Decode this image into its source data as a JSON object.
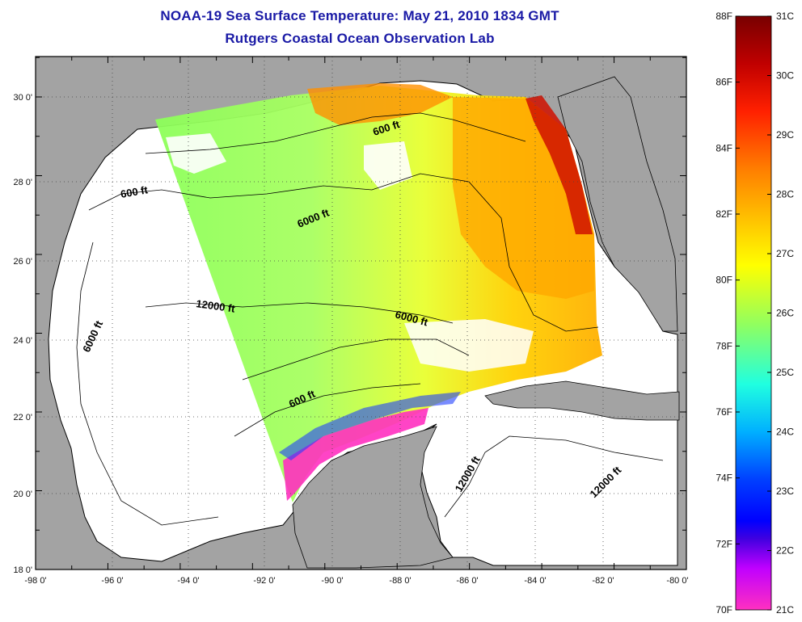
{
  "title_line1": "NOAA-19 Sea Surface Temperature:  May 21, 2010 1834 GMT",
  "title_line2": "Rutgers Coastal Ocean Observation Lab",
  "lon_ticks": [
    "-98 0'",
    "-96 0'",
    "-94 0'",
    "-92 0'",
    "-90 0'",
    "-88 0'",
    "-86 0'",
    "-84 0'",
    "-82 0'",
    "-80 0'"
  ],
  "lat_ticks": [
    "30 0'",
    "28 0'",
    "26 0'",
    "24 0'",
    "22 0'",
    "20 0'",
    "18 0'"
  ],
  "colorbar": {
    "fahrenheit": [
      "88F",
      "86F",
      "84F",
      "82F",
      "80F",
      "78F",
      "76F",
      "74F",
      "72F",
      "70F"
    ],
    "celsius": [
      "31C",
      "30C",
      "29C",
      "28C",
      "27C",
      "26C",
      "25C",
      "24C",
      "23C",
      "22C",
      "21C"
    ],
    "colors": [
      "#7a0000",
      "#c00000",
      "#ff2000",
      "#ff7000",
      "#ffb000",
      "#ffff00",
      "#a0ff40",
      "#40ffb0",
      "#00e0ff",
      "#0080ff",
      "#0010ff",
      "#8000ff",
      "#ff20c0"
    ]
  },
  "contour_labels": {
    "c600_north": "600 ft",
    "c600_west": "600 ft",
    "c6000_north": "6000 ft",
    "c12000_center": "12000 ft",
    "c6000_center": "6000 ft",
    "c6000_west": "6000 ft",
    "c600_south": "600 ft",
    "c12000_south": "12000 ft",
    "c12000_east": "12000 ft"
  }
}
